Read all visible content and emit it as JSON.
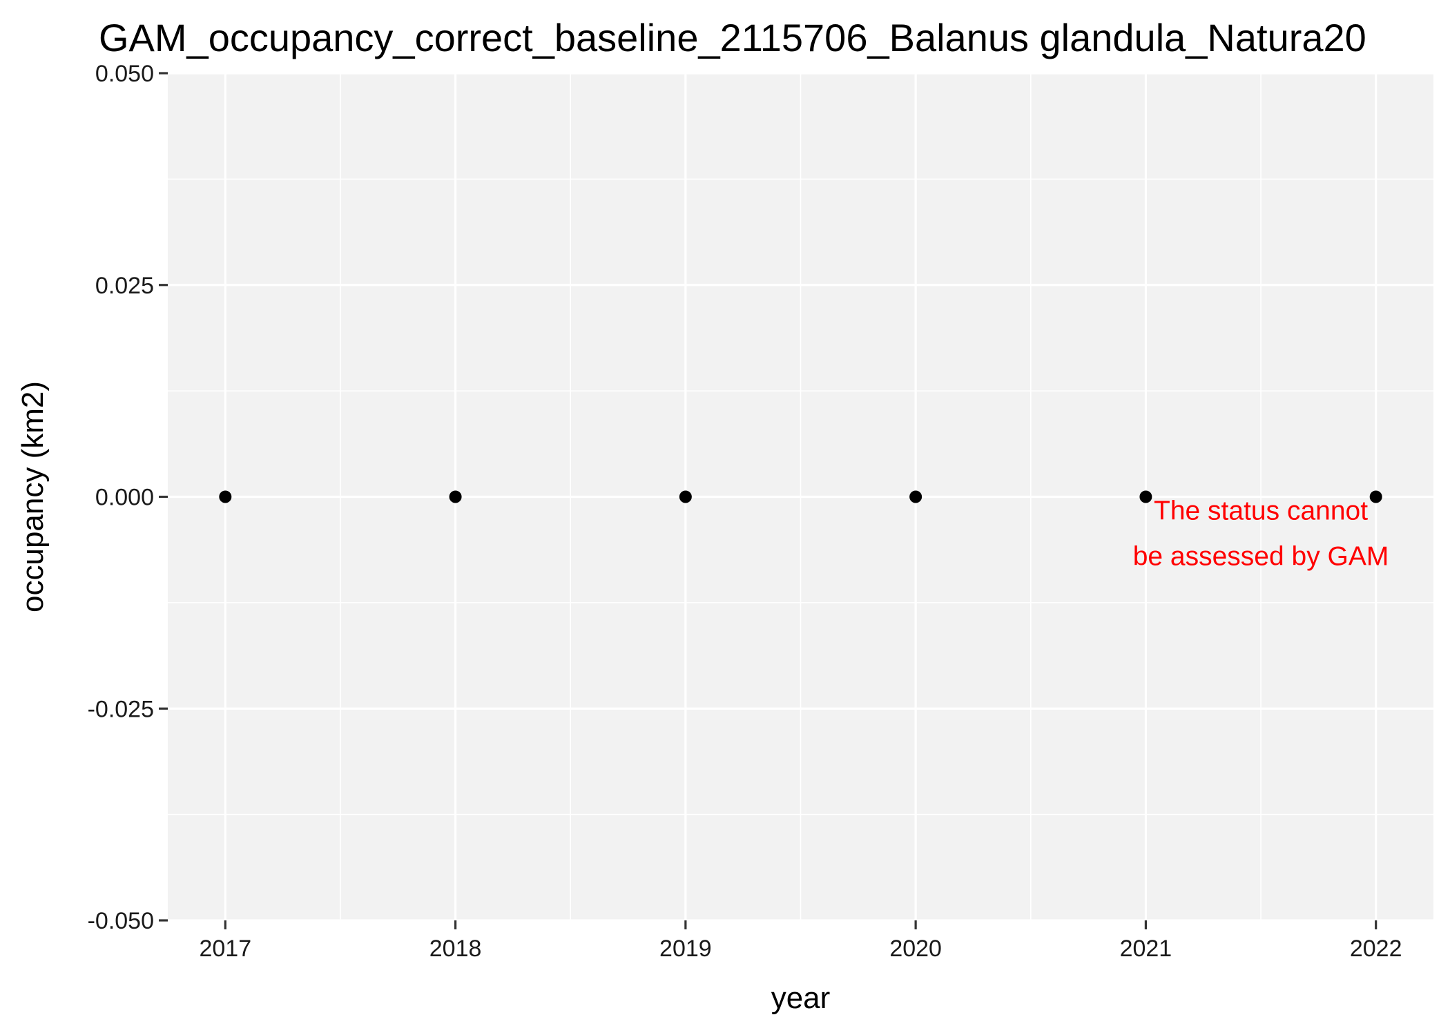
{
  "chart_data": {
    "type": "scatter",
    "title": "GAM_occupancy_correct_baseline_2115706_Balanus glandula_Natura20",
    "xlabel": "year",
    "ylabel": "occupancy (km2)",
    "xlim": [
      2016.75,
      2022.25
    ],
    "ylim": [
      -0.05,
      0.05
    ],
    "x_ticks": [
      2017,
      2018,
      2019,
      2020,
      2021,
      2022
    ],
    "x_tick_labels": [
      "2017",
      "2018",
      "2019",
      "2020",
      "2021",
      "2022"
    ],
    "y_ticks": [
      -0.05,
      -0.025,
      0,
      0.025,
      0.05
    ],
    "y_tick_labels": [
      "-0.050",
      "-0.025",
      "0.000",
      "0.025",
      "0.050"
    ],
    "grid": true,
    "series": [
      {
        "x": [
          2017,
          2018,
          2019,
          2020,
          2021,
          2022
        ],
        "y": [
          0,
          0,
          0,
          0,
          0,
          0
        ],
        "color": "#000000"
      }
    ],
    "annotation": {
      "lines": [
        "The status cannot",
        "be assessed by GAM"
      ],
      "x": 2021.5,
      "y": -0.0043,
      "color": "#ff0000"
    },
    "colors": {
      "panel": "#f2f2f2",
      "grid": "#ffffff",
      "text": "#000000"
    }
  }
}
